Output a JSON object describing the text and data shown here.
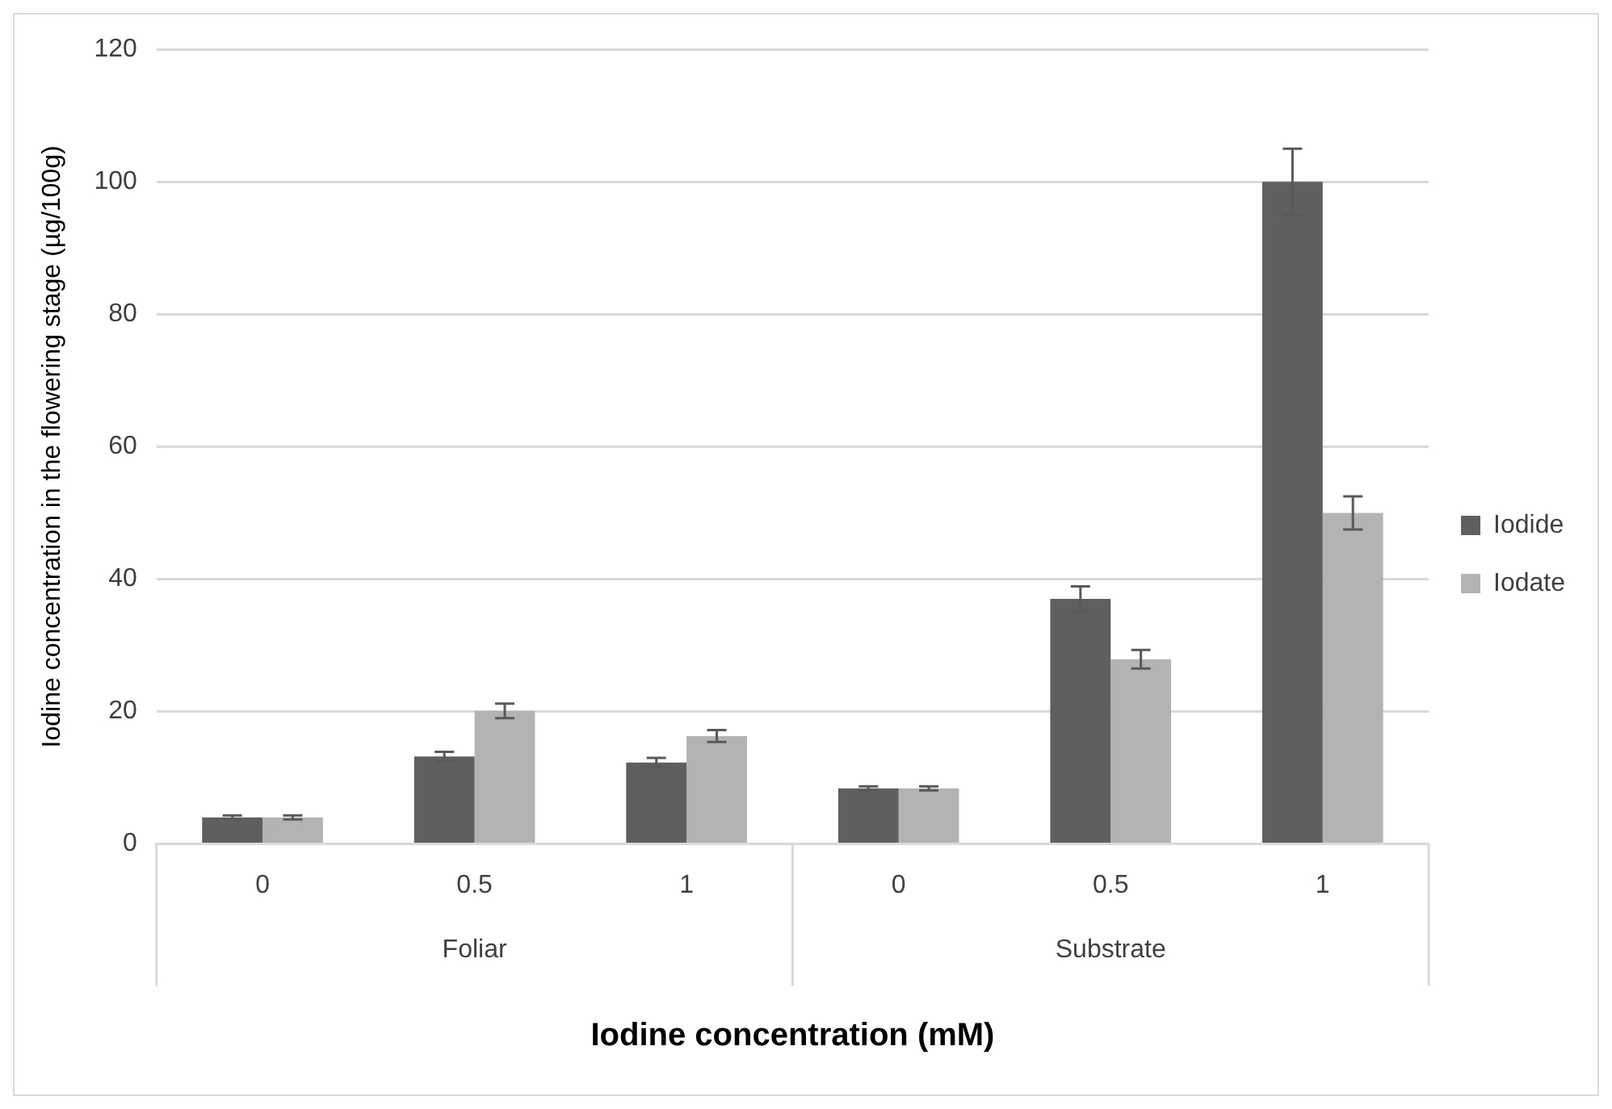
{
  "chart_data": {
    "type": "bar",
    "xlabel": "Iodine concentration (mM)",
    "ylabel": "Iodine concentration in the flowering stage (µg/100g)",
    "categories": [
      "0",
      "0.5",
      "1",
      "0",
      "0.5",
      "1"
    ],
    "series": [
      {
        "name": "Iodide",
        "color": "#5f5f5f",
        "values": [
          4.0,
          13.2,
          12.3,
          8.4,
          37.0,
          100
        ],
        "errors": [
          0.3,
          0.7,
          0.7,
          0.3,
          1.9,
          5
        ]
      },
      {
        "name": "Iodate",
        "color": "#b3b3b3",
        "values": [
          4.0,
          20.1,
          16.3,
          8.4,
          27.9,
          50.0
        ],
        "errors": [
          0.3,
          1.1,
          0.9,
          0.3,
          1.4,
          2.5
        ]
      }
    ],
    "annotations": [
      "Foliar",
      "Substrate"
    ],
    "ylim": [
      0,
      120
    ],
    "yticks": [
      0,
      20,
      40,
      60,
      80,
      100,
      120
    ],
    "grid": "y",
    "legend": "right"
  }
}
